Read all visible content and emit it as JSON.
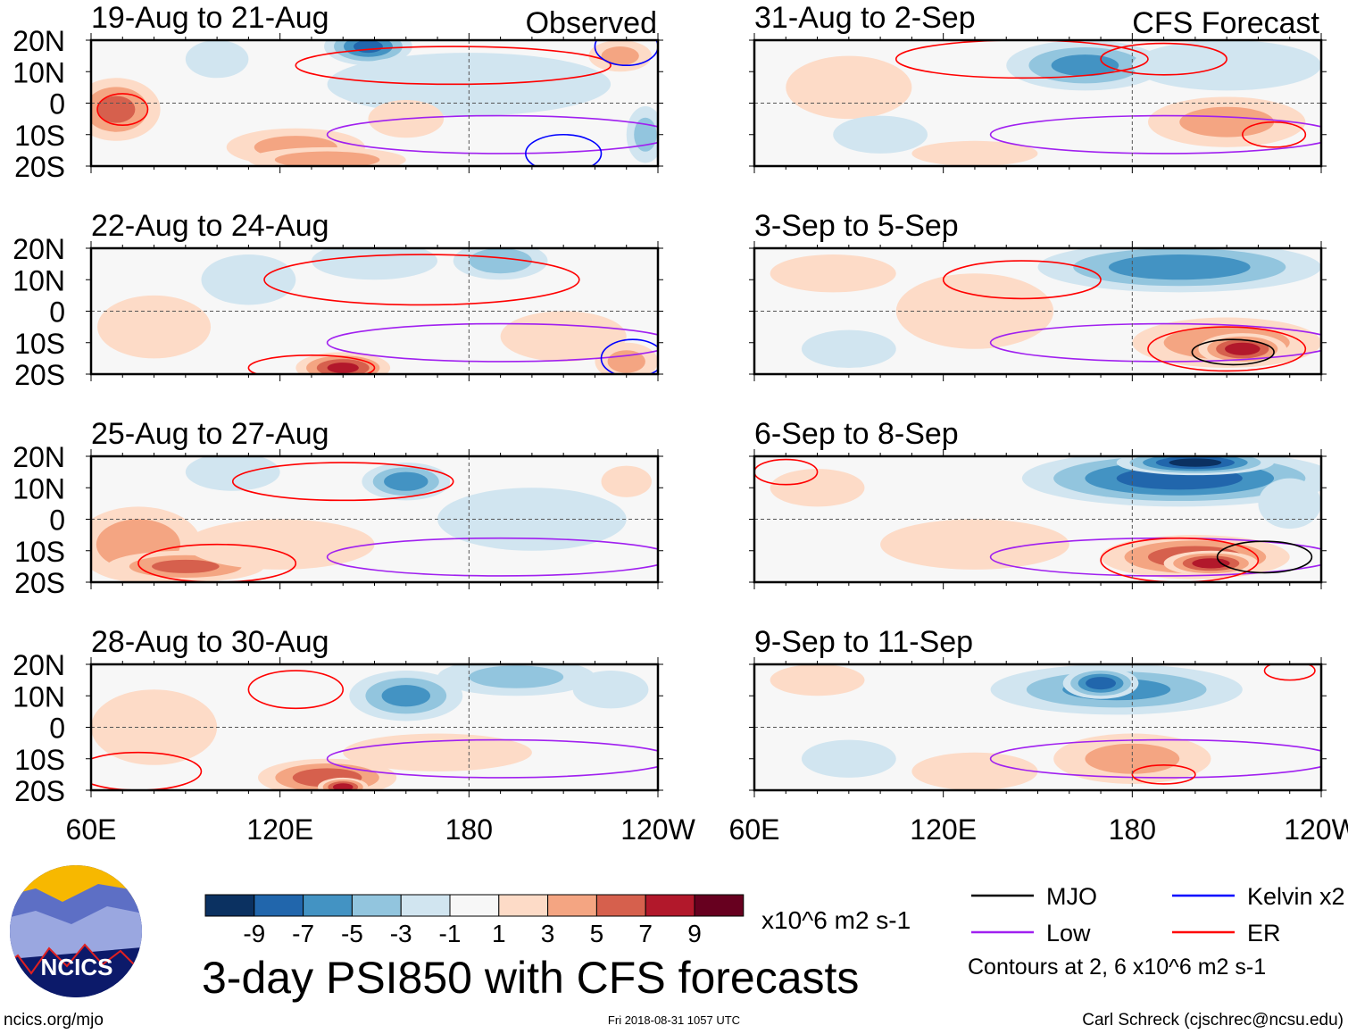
{
  "chart_data": {
    "type": "heatmap",
    "title": "3-day PSI850 with CFS forecasts",
    "units": "x10^6 m2 s-1",
    "contour_note": "Contours at 2, 6 x10^6 m2 s-1",
    "lat_ticks": [
      "20N",
      "10N",
      "0",
      "10S",
      "20S"
    ],
    "lon_ticks": [
      "60E",
      "120E",
      "180",
      "120W"
    ],
    "lon_range": [
      60,
      240
    ],
    "lat_range": [
      -20,
      20
    ],
    "colorbar": {
      "ticks": [
        "-9",
        "-7",
        "-5",
        "-3",
        "-1",
        "1",
        "3",
        "5",
        "7",
        "9"
      ],
      "colors": [
        "#0b3161",
        "#2166ac",
        "#4393c3",
        "#92c5de",
        "#d1e5f0",
        "#f7f7f7",
        "#fddbc7",
        "#f4a582",
        "#d6604d",
        "#b2182b",
        "#67001f"
      ]
    },
    "legend": [
      {
        "label": "MJO",
        "color": "#000000"
      },
      {
        "label": "Kelvin x2",
        "color": "#0000ff"
      },
      {
        "label": "Low",
        "color": "#a020f0"
      },
      {
        "label": "ER",
        "color": "#ff0000"
      }
    ],
    "column_labels": {
      "observed": "Observed",
      "forecast": "CFS Forecast"
    },
    "panels": [
      {
        "title": "19-Aug to 21-Aug",
        "col": 0,
        "row": 0,
        "features": [
          [
            68,
            -2,
            14,
            10,
            6
          ],
          [
            125,
            -14,
            22,
            6,
            4
          ],
          [
            148,
            18,
            14,
            6,
            -8
          ],
          [
            100,
            14,
            10,
            6,
            -3
          ],
          [
            180,
            6,
            45,
            10,
            -2
          ],
          [
            228,
            15,
            10,
            5,
            4
          ],
          [
            236,
            -10,
            6,
            9,
            -4
          ],
          [
            135,
            -18,
            25,
            4,
            5
          ],
          [
            160,
            -5,
            12,
            6,
            3
          ]
        ],
        "contours": [
          [
            "ER",
            70,
            -2,
            8,
            5
          ],
          [
            "Low",
            190,
            -10,
            55,
            6
          ],
          [
            "Blue",
            210,
            -16,
            12,
            6
          ],
          [
            "ER",
            175,
            12,
            50,
            6
          ],
          [
            "Blue",
            230,
            18,
            10,
            6
          ]
        ]
      },
      {
        "title": "22-Aug to 24-Aug",
        "col": 0,
        "row": 0.999,
        "features": [
          [
            80,
            -5,
            18,
            10,
            3
          ],
          [
            140,
            -18,
            15,
            5,
            8
          ],
          [
            210,
            -8,
            20,
            8,
            3
          ],
          [
            190,
            16,
            15,
            6,
            -5
          ],
          [
            110,
            10,
            15,
            8,
            -3
          ],
          [
            150,
            16,
            20,
            6,
            -3
          ],
          [
            230,
            -16,
            10,
            6,
            4
          ]
        ],
        "contours": [
          [
            "ER",
            165,
            10,
            50,
            8
          ],
          [
            "Low",
            190,
            -10,
            55,
            6
          ],
          [
            "Blue",
            232,
            -15,
            10,
            6
          ],
          [
            "ER",
            130,
            -18,
            20,
            4
          ]
        ]
      },
      {
        "title": "25-Aug to 27-Aug",
        "col": 0,
        "row": 2,
        "features": [
          [
            75,
            -8,
            20,
            12,
            5
          ],
          [
            90,
            -15,
            25,
            5,
            6
          ],
          [
            160,
            12,
            14,
            6,
            -7
          ],
          [
            120,
            -8,
            30,
            8,
            3
          ],
          [
            230,
            12,
            8,
            5,
            2
          ],
          [
            105,
            15,
            15,
            6,
            -3
          ],
          [
            200,
            0,
            30,
            10,
            -2
          ]
        ],
        "contours": [
          [
            "ER",
            140,
            12,
            35,
            6
          ],
          [
            "Low",
            190,
            -12,
            55,
            6
          ],
          [
            "ER",
            100,
            -14,
            25,
            6
          ]
        ]
      },
      {
        "title": "28-Aug to 30-Aug",
        "col": 0,
        "row": 3,
        "features": [
          [
            80,
            0,
            20,
            12,
            3
          ],
          [
            135,
            -16,
            22,
            6,
            7
          ],
          [
            140,
            -19,
            8,
            3,
            9
          ],
          [
            160,
            10,
            18,
            8,
            -6
          ],
          [
            195,
            16,
            25,
            6,
            -4
          ],
          [
            225,
            12,
            12,
            6,
            -3
          ],
          [
            170,
            -8,
            30,
            6,
            2
          ]
        ],
        "contours": [
          [
            "ER",
            125,
            12,
            15,
            6
          ],
          [
            "Low",
            190,
            -10,
            55,
            6
          ],
          [
            "ER",
            75,
            -14,
            20,
            6
          ]
        ]
      },
      {
        "title": "31-Aug to 2-Sep",
        "col": 1,
        "row": 0,
        "features": [
          [
            165,
            12,
            25,
            8,
            -6
          ],
          [
            210,
            12,
            30,
            8,
            -3
          ],
          [
            210,
            -6,
            25,
            8,
            4
          ],
          [
            90,
            5,
            20,
            10,
            2
          ],
          [
            130,
            -16,
            20,
            4,
            3
          ],
          [
            100,
            -10,
            15,
            6,
            -2
          ]
        ],
        "contours": [
          [
            "ER",
            145,
            14,
            40,
            6
          ],
          [
            "ER",
            190,
            14,
            20,
            5
          ],
          [
            "Low",
            190,
            -10,
            55,
            6
          ],
          [
            "ER",
            225,
            -10,
            10,
            4
          ]
        ]
      },
      {
        "title": "3-Sep to 5-Sep",
        "col": 1,
        "row": 1,
        "features": [
          [
            195,
            14,
            45,
            8,
            -7
          ],
          [
            210,
            -10,
            30,
            8,
            5
          ],
          [
            215,
            -12,
            14,
            5,
            9
          ],
          [
            130,
            0,
            25,
            12,
            3
          ],
          [
            85,
            12,
            20,
            6,
            3
          ],
          [
            90,
            -12,
            15,
            6,
            -2
          ]
        ],
        "contours": [
          [
            "ER",
            145,
            10,
            25,
            6
          ],
          [
            "Low",
            190,
            -10,
            55,
            6
          ],
          [
            "ER",
            210,
            -12,
            25,
            7
          ],
          [
            "MJO",
            212,
            -13,
            13,
            4
          ]
        ]
      },
      {
        "title": "6-Sep to 8-Sep",
        "col": 1,
        "row": 2,
        "features": [
          [
            195,
            13,
            50,
            9,
            -9
          ],
          [
            200,
            18,
            25,
            4,
            -11
          ],
          [
            200,
            -12,
            30,
            7,
            7
          ],
          [
            205,
            -14,
            15,
            4,
            9
          ],
          [
            130,
            -8,
            30,
            8,
            2
          ],
          [
            80,
            10,
            15,
            6,
            2
          ],
          [
            230,
            5,
            10,
            8,
            -3
          ]
        ],
        "contours": [
          [
            "ER",
            70,
            15,
            10,
            4
          ],
          [
            "Low",
            190,
            -12,
            55,
            6
          ],
          [
            "ER",
            195,
            -13,
            25,
            7
          ],
          [
            "MJO",
            222,
            -12,
            15,
            5
          ]
        ]
      },
      {
        "title": "9-Sep to 11-Sep",
        "col": 1,
        "row": 3,
        "features": [
          [
            175,
            12,
            40,
            8,
            -6
          ],
          [
            170,
            14,
            12,
            5,
            -9
          ],
          [
            180,
            -10,
            25,
            8,
            4
          ],
          [
            130,
            -14,
            20,
            6,
            2
          ],
          [
            80,
            15,
            15,
            5,
            2
          ],
          [
            90,
            -10,
            15,
            6,
            -2
          ]
        ],
        "contours": [
          [
            "Low",
            190,
            -10,
            55,
            6
          ],
          [
            "ER",
            190,
            -15,
            10,
            3
          ],
          [
            "ER",
            230,
            18,
            8,
            3
          ]
        ]
      }
    ]
  },
  "footer": {
    "logo_text": "NCICS",
    "website": "ncics.org/mjo",
    "timestamp": "Fri 2018-08-31 1057 UTC",
    "author": "Carl Schreck (cjschrec@ncsu.edu)"
  }
}
